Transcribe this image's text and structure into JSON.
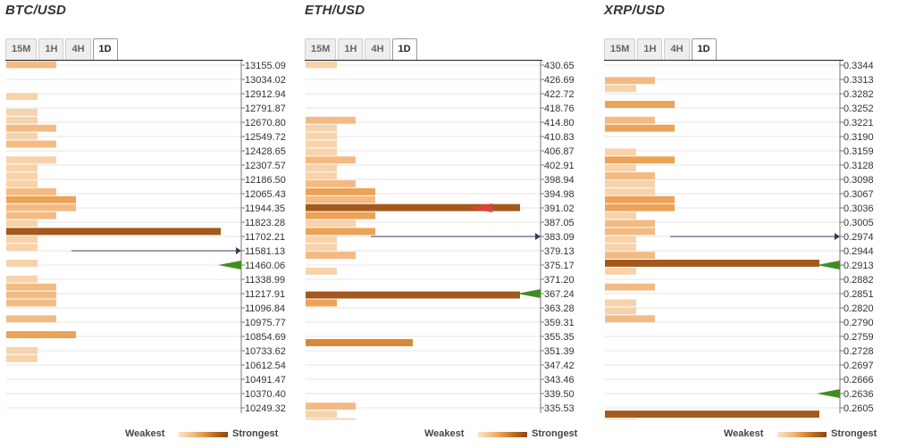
{
  "legend": {
    "weakest": "Weakest",
    "strongest": "Strongest"
  },
  "colors": {
    "l1": "#f7d3ab",
    "l2": "#f3bb83",
    "l3": "#eca257",
    "l4": "#db8733",
    "l5": "#a4591c",
    "green_arrow": "#3f8f20",
    "red_arrow": "#e24040",
    "price_line": "#2e3e55"
  },
  "panels": [
    {
      "title": "BTC/USD",
      "tabs": [
        "15M",
        "1H",
        "4H",
        "1D"
      ],
      "active_tab": "1D",
      "ticks": [
        "13155.09",
        "13034.02",
        "12912.94",
        "12791.87",
        "12670.80",
        "12549.72",
        "12428.65",
        "12307.57",
        "12186.50",
        "12065.43",
        "11944.35",
        "11823.28",
        "11702.21",
        "11581.13",
        "11460.06",
        "11338.99",
        "11217.91",
        "11096.84",
        "10975.77",
        "10854.69",
        "10733.62",
        "10612.54",
        "10491.47",
        "10370.40",
        "10249.32"
      ],
      "current_price_row": 13,
      "arrows": [
        {
          "row": 14,
          "color": "green"
        }
      ],
      "bars": [
        [
          0,
          2,
          "l2"
        ],
        [
          1,
          0,
          "l1"
        ],
        [
          2,
          0,
          "l1"
        ],
        [
          3,
          0,
          "l1"
        ],
        [
          4,
          1,
          "l1"
        ],
        [
          5,
          0,
          "l1"
        ],
        [
          6,
          1,
          "l1"
        ],
        [
          7,
          1,
          "l1"
        ],
        [
          8,
          2,
          "l2"
        ],
        [
          9,
          1,
          "l1"
        ],
        [
          10,
          2,
          "l2"
        ],
        [
          11,
          0,
          "l1"
        ],
        [
          12,
          2,
          "l1"
        ],
        [
          13,
          1,
          "l1"
        ],
        [
          14,
          1,
          "l1"
        ],
        [
          15,
          1,
          "l1"
        ],
        [
          16,
          2,
          "l2"
        ],
        [
          17,
          3,
          "l3"
        ],
        [
          18,
          3,
          "l2"
        ],
        [
          19,
          2,
          "l2"
        ],
        [
          20,
          1,
          "l1"
        ],
        [
          21,
          5,
          "l5"
        ],
        [
          22,
          1,
          "l1"
        ],
        [
          23,
          1,
          "l1"
        ],
        [
          24,
          0,
          "l1"
        ],
        [
          25,
          1,
          "l1"
        ],
        [
          26,
          0,
          "l1"
        ],
        [
          27,
          1,
          "l1"
        ],
        [
          28,
          2,
          "l2"
        ],
        [
          29,
          2,
          "l2"
        ],
        [
          30,
          2,
          "l2"
        ],
        [
          31,
          0,
          "l1"
        ],
        [
          32,
          2,
          "l2"
        ],
        [
          33,
          0,
          "l1"
        ],
        [
          34,
          3,
          "l3"
        ],
        [
          35,
          0,
          "l1"
        ],
        [
          36,
          1,
          "l1"
        ],
        [
          37,
          1,
          "l1"
        ]
      ]
    },
    {
      "title": "ETH/USD",
      "tabs": [
        "15M",
        "1H",
        "4H",
        "1D"
      ],
      "active_tab": "1D",
      "ticks": [
        "430.65",
        "426.69",
        "422.72",
        "418.76",
        "414.80",
        "410.83",
        "406.87",
        "402.91",
        "398.94",
        "394.98",
        "391.02",
        "387.05",
        "383.09",
        "379.13",
        "375.17",
        "371.20",
        "367.24",
        "363.28",
        "359.31",
        "355.35",
        "351.39",
        "347.42",
        "343.46",
        "339.50",
        "335.53"
      ],
      "current_price_row": 12,
      "arrows": [
        {
          "row": 10,
          "color": "red"
        },
        {
          "row": 16,
          "color": "green"
        }
      ],
      "bars": [
        [
          0,
          1,
          "l1"
        ],
        [
          1,
          0,
          "l1"
        ],
        [
          2,
          0,
          "l1"
        ],
        [
          3,
          0,
          "l1"
        ],
        [
          4,
          0,
          "l1"
        ],
        [
          5,
          0,
          "l1"
        ],
        [
          6,
          0,
          "l1"
        ],
        [
          7,
          2,
          "l2"
        ],
        [
          8,
          1,
          "l1"
        ],
        [
          9,
          1,
          "l1"
        ],
        [
          10,
          1,
          "l1"
        ],
        [
          11,
          1,
          "l1"
        ],
        [
          12,
          2,
          "l2"
        ],
        [
          13,
          1,
          "l1"
        ],
        [
          14,
          1,
          "l1"
        ],
        [
          15,
          2,
          "l2"
        ],
        [
          16,
          3,
          "l3"
        ],
        [
          17,
          3,
          "l2"
        ],
        [
          18,
          5,
          "l5"
        ],
        [
          19,
          3,
          "l3"
        ],
        [
          20,
          2,
          "l1"
        ],
        [
          21,
          3,
          "l3"
        ],
        [
          22,
          1,
          "l1"
        ],
        [
          23,
          1,
          "l1"
        ],
        [
          24,
          2,
          "l2"
        ],
        [
          25,
          0,
          "l1"
        ],
        [
          26,
          1,
          "l1"
        ],
        [
          27,
          0,
          "l1"
        ],
        [
          28,
          0,
          "l1"
        ],
        [
          29,
          5,
          "l5"
        ],
        [
          30,
          1,
          "l3"
        ],
        [
          31,
          0,
          "l1"
        ],
        [
          32,
          0,
          "l1"
        ],
        [
          33,
          0,
          "l1"
        ],
        [
          34,
          0,
          "l1"
        ],
        [
          35,
          4,
          "l4"
        ],
        [
          36,
          0,
          "l1"
        ],
        [
          37,
          0,
          "l1"
        ],
        [
          38,
          0,
          "l1"
        ],
        [
          39,
          0,
          "l1"
        ],
        [
          40,
          0,
          "l1"
        ],
        [
          41,
          0,
          "l1"
        ],
        [
          42,
          0,
          "l1"
        ],
        [
          43,
          2,
          "l2"
        ],
        [
          44,
          1,
          "l1"
        ],
        [
          45,
          2,
          "l2"
        ]
      ]
    },
    {
      "title": "XRP/USD",
      "tabs": [
        "15M",
        "1H",
        "4H",
        "1D"
      ],
      "active_tab": "1D",
      "ticks": [
        "0.3344",
        "0.3313",
        "0.3282",
        "0.3252",
        "0.3221",
        "0.3190",
        "0.3159",
        "0.3128",
        "0.3098",
        "0.3067",
        "0.3036",
        "0.3005",
        "0.2974",
        "0.2944",
        "0.2913",
        "0.2882",
        "0.2851",
        "0.2820",
        "0.2790",
        "0.2759",
        "0.2728",
        "0.2697",
        "0.2666",
        "0.2636",
        "0.2605"
      ],
      "current_price_row": 12,
      "arrows": [
        {
          "row": 14,
          "color": "green"
        },
        {
          "row": 23,
          "color": "green"
        }
      ],
      "bars": [
        [
          0,
          0,
          "l1"
        ],
        [
          1,
          0,
          "l1"
        ],
        [
          2,
          2,
          "l2"
        ],
        [
          3,
          1,
          "l1"
        ],
        [
          4,
          0,
          "l1"
        ],
        [
          5,
          3,
          "l3"
        ],
        [
          6,
          0,
          "l1"
        ],
        [
          7,
          2,
          "l2"
        ],
        [
          8,
          3,
          "l3"
        ],
        [
          9,
          0,
          "l1"
        ],
        [
          10,
          0,
          "l1"
        ],
        [
          11,
          1,
          "l1"
        ],
        [
          12,
          3,
          "l3"
        ],
        [
          13,
          1,
          "l1"
        ],
        [
          14,
          2,
          "l2"
        ],
        [
          15,
          2,
          "l1"
        ],
        [
          16,
          2,
          "l1"
        ],
        [
          17,
          3,
          "l3"
        ],
        [
          18,
          3,
          "l3"
        ],
        [
          19,
          1,
          "l1"
        ],
        [
          20,
          2,
          "l2"
        ],
        [
          21,
          2,
          "l2"
        ],
        [
          22,
          1,
          "l1"
        ],
        [
          23,
          1,
          "l1"
        ],
        [
          24,
          2,
          "l2"
        ],
        [
          25,
          5,
          "l5"
        ],
        [
          26,
          1,
          "l1"
        ],
        [
          27,
          0,
          "l1"
        ],
        [
          28,
          2,
          "l2"
        ],
        [
          29,
          0,
          "l1"
        ],
        [
          30,
          1,
          "l1"
        ],
        [
          31,
          1,
          "l1"
        ],
        [
          32,
          2,
          "l2"
        ],
        [
          33,
          0,
          "l1"
        ],
        [
          34,
          0,
          "l1"
        ],
        [
          35,
          0,
          "l1"
        ],
        [
          36,
          0,
          "l1"
        ],
        [
          37,
          0,
          "l1"
        ],
        [
          38,
          0,
          "l1"
        ],
        [
          39,
          0,
          "l1"
        ],
        [
          40,
          0,
          "l1"
        ],
        [
          41,
          0,
          "l1"
        ],
        [
          42,
          0,
          "l1"
        ],
        [
          43,
          0,
          "l1"
        ],
        [
          44,
          5,
          "l5"
        ],
        [
          45,
          1,
          "l1"
        ]
      ]
    }
  ]
}
